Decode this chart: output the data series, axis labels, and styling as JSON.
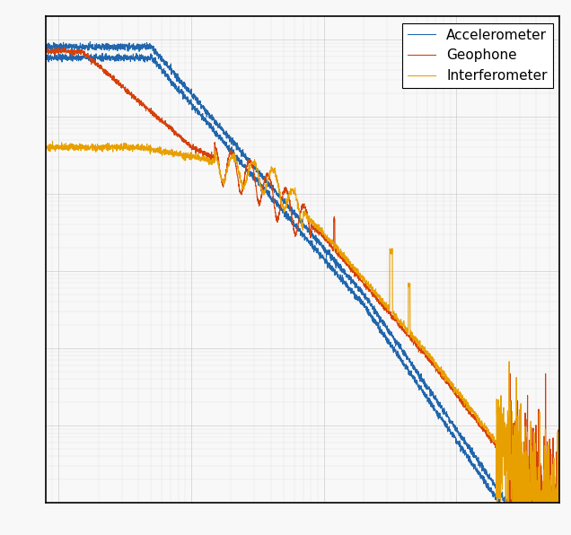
{
  "colors": {
    "accelerometer": "#2166ac",
    "geophone": "#d6400a",
    "interferometer": "#e8a000"
  },
  "legend_labels": [
    "Accelerometer",
    "Geophone",
    "Interferometer"
  ],
  "xlim": [
    0.08,
    600
  ],
  "ylim": [
    1e-10,
    0.0002
  ],
  "background_color": "#f8f8f8",
  "grid_color": "#cccccc",
  "legend_fontsize": 11,
  "tick_labelsize": 10
}
